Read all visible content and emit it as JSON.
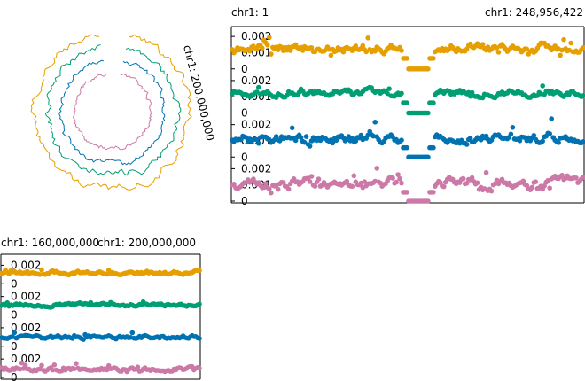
{
  "chart_data": [
    {
      "type": "line",
      "view": "circular",
      "label": "chr1: 200,000,000",
      "series": [
        {
          "color": "#E69F00",
          "radius_scale": 1.0
        },
        {
          "color": "#009E73",
          "radius_scale": 0.83
        },
        {
          "color": "#0072B2",
          "radius_scale": 0.67
        },
        {
          "color": "#CC79A7",
          "radius_scale": 0.49
        }
      ],
      "gap_start_deg": -10,
      "gap_end_deg": 12
    },
    {
      "type": "scatter",
      "view": "full chromosome",
      "x_start_label": "chr1: 1",
      "x_end_label": "chr1: 248,956,422",
      "xlim": [
        1,
        248956422
      ],
      "ylim": [
        0,
        0.0025
      ],
      "ticks": [
        "0.002",
        "0.001",
        "0"
      ],
      "centromere": [
        121000000,
        143000000
      ],
      "series": [
        {
          "color": "#E69F00",
          "base": 0.0013,
          "amp": 0.0004
        },
        {
          "color": "#009E73",
          "base": 0.00125,
          "amp": 0.0003
        },
        {
          "color": "#0072B2",
          "base": 0.00115,
          "amp": 0.00045
        },
        {
          "color": "#CC79A7",
          "base": 0.0011,
          "amp": 0.0005
        }
      ]
    },
    {
      "type": "scatter",
      "view": "zoomed region",
      "x_start_label": "chr1: 160,000,000",
      "x_end_label": "chr1: 200,000,000",
      "xlim": [
        160000000,
        200000000
      ],
      "ylim": [
        0,
        0.003
      ],
      "ticks": [
        "0.002",
        "0"
      ],
      "series": [
        {
          "color": "#E69F00",
          "base": 0.0012,
          "amp": 0.0003
        },
        {
          "color": "#009E73",
          "base": 0.0011,
          "amp": 0.00025
        },
        {
          "color": "#0072B2",
          "base": 0.001,
          "amp": 0.0003
        },
        {
          "color": "#CC79A7",
          "base": 0.0009,
          "amp": 0.00035
        }
      ]
    }
  ]
}
